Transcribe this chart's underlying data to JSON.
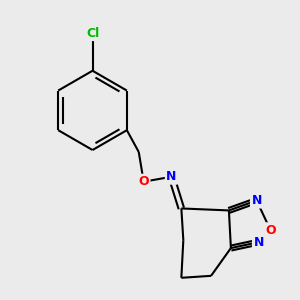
{
  "background_color": "#ebebeb",
  "bond_color": "#000000",
  "atom_colors": {
    "Cl": "#00bb00",
    "O": "#ff0000",
    "N": "#0000ff",
    "C": "#000000"
  },
  "figsize": [
    3.0,
    3.0
  ],
  "dpi": 100
}
